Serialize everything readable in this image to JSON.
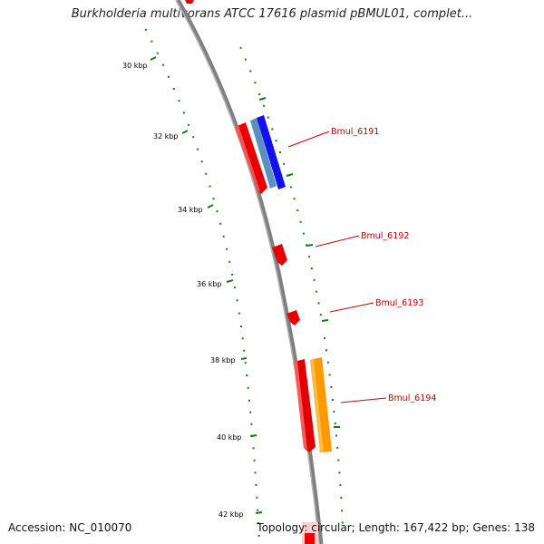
{
  "title": "Burkholderia multivorans ATCC 17616 plasmid pBMUL01, complet...",
  "accession": "Accession: NC_010070",
  "summary": "Topology: circular; Length: 167,422 bp; Genes: 138",
  "ticks": [
    "30 kbp",
    "32 kbp",
    "34 kbp",
    "36 kbp",
    "38 kbp",
    "40 kbp",
    "42 kbp"
  ],
  "genes": [
    "Bmul_6191",
    "Bmul_6192",
    "Bmul_6193",
    "Bmul_6194"
  ],
  "colors": {
    "backbone": "#808080",
    "dots": "#1a7a1a",
    "gene_label": "#c00000",
    "cds_red": "#ff0000",
    "cds_blue": "#0000ff",
    "cds_steelblue": "#4682b4",
    "cds_orange": "#ff9900"
  }
}
